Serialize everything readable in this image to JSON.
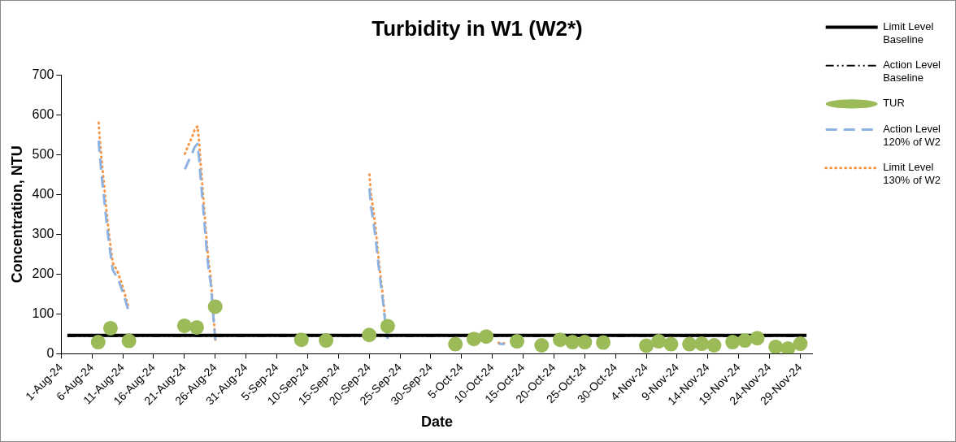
{
  "chart_data": {
    "type": "line",
    "title": "Turbidity in W1 (W2*)",
    "xlabel": "Date",
    "ylabel": "Concentration, NTU",
    "xlim": [
      "--08-01",
      "--12-01"
    ],
    "xticks": [
      {
        "value": "--08-01",
        "label": "1-Aug-24"
      },
      {
        "value": "--08-06",
        "label": "6-Aug-24"
      },
      {
        "value": "--08-11",
        "label": "11-Aug-24"
      },
      {
        "value": "--08-16",
        "label": "16-Aug-24"
      },
      {
        "value": "--08-21",
        "label": "21-Aug-24"
      },
      {
        "value": "--08-26",
        "label": "26-Aug-24"
      },
      {
        "value": "--08-31",
        "label": "31-Aug-24"
      },
      {
        "value": "--09-05",
        "label": "5-Sep-24"
      },
      {
        "value": "--09-10",
        "label": "10-Sep-24"
      },
      {
        "value": "--09-15",
        "label": "15-Sep-24"
      },
      {
        "value": "--09-20",
        "label": "20-Sep-24"
      },
      {
        "value": "--09-25",
        "label": "25-Sep-24"
      },
      {
        "value": "--09-30",
        "label": "30-Sep-24"
      },
      {
        "value": "--10-05",
        "label": "5-Oct-24"
      },
      {
        "value": "--10-10",
        "label": "10-Oct-24"
      },
      {
        "value": "--10-15",
        "label": "15-Oct-24"
      },
      {
        "value": "--10-20",
        "label": "20-Oct-24"
      },
      {
        "value": "--10-25",
        "label": "25-Oct-24"
      },
      {
        "value": "--10-30",
        "label": "30-Oct-24"
      },
      {
        "value": "--11-04",
        "label": "4-Nov-24"
      },
      {
        "value": "--11-09",
        "label": "9-Nov-24"
      },
      {
        "value": "--11-14",
        "label": "14-Nov-24"
      },
      {
        "value": "--11-19",
        "label": "19-Nov-24"
      },
      {
        "value": "--11-24",
        "label": "24-Nov-24"
      },
      {
        "value": "--11-29",
        "label": "29-Nov-24"
      }
    ],
    "ylim": [
      0,
      700
    ],
    "yticks": [
      0,
      100,
      200,
      300,
      400,
      500,
      600,
      700
    ],
    "grid": false,
    "legend": "top right",
    "series": [
      {
        "name": "Limit Level Baseline",
        "color": "#000000",
        "line_style": "solid",
        "marker": "none",
        "x": [
          "--08-02",
          "--11-30"
        ],
        "values": [
          46,
          46
        ]
      },
      {
        "name": "Action Level Baseline",
        "color": "#000000",
        "line_style": "dashdot",
        "marker": "none",
        "x": [
          "--08-02",
          "--11-30"
        ],
        "values": [
          44,
          44
        ]
      },
      {
        "name": "TUR",
        "type": "scatter",
        "color": "#9bbb59",
        "marker": "circle",
        "x": [
          "--08-07",
          "--08-09",
          "--08-12",
          "--08-21",
          "--08-23",
          "--08-26",
          "--09-09",
          "--09-13",
          "--09-20",
          "--09-23",
          "--10-04",
          "--10-07",
          "--10-09",
          "--10-14",
          "--10-18",
          "--10-21",
          "--10-23",
          "--10-25",
          "--10-28",
          "--11-04",
          "--11-06",
          "--11-08",
          "--11-11",
          "--11-13",
          "--11-15",
          "--11-18",
          "--11-20",
          "--11-22",
          "--11-25",
          "--11-27",
          "--11-29"
        ],
        "values": [
          29,
          64,
          32,
          70,
          66,
          118,
          35,
          33,
          47,
          69,
          24,
          37,
          43,
          31,
          21,
          35,
          29,
          29,
          28,
          20,
          31,
          24,
          24,
          25,
          21,
          29,
          33,
          39,
          17,
          13,
          25
        ]
      },
      {
        "name": "Action Level 120% of W2",
        "color": "#8db3e2",
        "line_style": "dashed",
        "marker": "none",
        "x": [
          "--08-07T02:00",
          "--08-07T04:00",
          "--08-07T16:00",
          "--08-07T23:00",
          "--08-08T09:00",
          "--08-08T20:00",
          "--08-09T09:00",
          "--08-10T05:00",
          "--08-11T03:00",
          "--08-11T21:00",
          null,
          "--08-21T02:00",
          "--08-21T14:00",
          "--08-22T04:00",
          "--08-22T16:00",
          "--08-23T03:00",
          "--08-23T10:00",
          "--08-23T15:00",
          "--08-23T23:00",
          "--08-24T07:00",
          "--08-24T15:00",
          "--08-24T22:00",
          "--08-25T07:00",
          "--08-25T12:00",
          "--08-25T19:00",
          "--08-26T01:00",
          null,
          "--09-20T01:00",
          "--09-20T06:00",
          "--09-20T16:00",
          "--09-21T01:00",
          "--09-21T08:00",
          "--09-21T15:00",
          "--09-21T23:00",
          "--09-22T07:00",
          "--09-22T13:00",
          "--09-23T00:00",
          null,
          "--10-11",
          "--10-12"
        ],
        "values": [
          535,
          515,
          432,
          391,
          327,
          268,
          210,
          188,
          149,
          110,
          null,
          463,
          481,
          499,
          519,
          527,
          486,
          443,
          383,
          321,
          259,
          214,
          175,
          134,
          74,
          30,
          null,
          415,
          374,
          333,
          291,
          248,
          207,
          166,
          125,
          87,
          37,
          null,
          25,
          24
        ]
      },
      {
        "name": "Limit Level 130% of W2",
        "color": "#f79646",
        "line_style": "dotted",
        "marker": "none",
        "x": [
          "--08-07T02:00",
          "--08-07T04:00",
          "--08-07T16:00",
          "--08-07T23:00",
          "--08-08T09:00",
          "--08-08T20:00",
          "--08-09T09:00",
          "--08-10T05:00",
          "--08-11T03:00",
          "--08-11T21:00",
          null,
          "--08-21T02:00",
          "--08-21T14:00",
          "--08-22T04:00",
          "--08-22T16:00",
          "--08-23T03:00",
          "--08-23T10:00",
          "--08-23T15:00",
          "--08-23T23:00",
          "--08-24T07:00",
          "--08-24T15:00",
          "--08-24T22:00",
          "--08-25T07:00",
          "--08-25T12:00",
          "--08-25T19:00",
          "--08-26T01:00",
          null,
          "--09-20T01:00",
          "--09-20T06:00",
          "--09-20T16:00",
          "--09-21T01:00",
          "--09-21T08:00",
          "--09-21T15:00",
          "--09-21T23:00",
          "--09-22T07:00",
          "--09-22T13:00",
          "--09-23T00:00",
          null,
          "--10-11",
          "--10-12"
        ],
        "values": [
          580,
          558,
          468,
          424,
          354,
          290,
          228,
          204,
          161,
          119,
          null,
          502,
          521,
          541,
          562,
          571,
          527,
          480,
          415,
          348,
          281,
          232,
          190,
          145,
          80,
          33,
          null,
          450,
          405,
          361,
          315,
          269,
          224,
          180,
          135,
          94,
          40,
          null,
          27,
          26
        ]
      }
    ]
  }
}
